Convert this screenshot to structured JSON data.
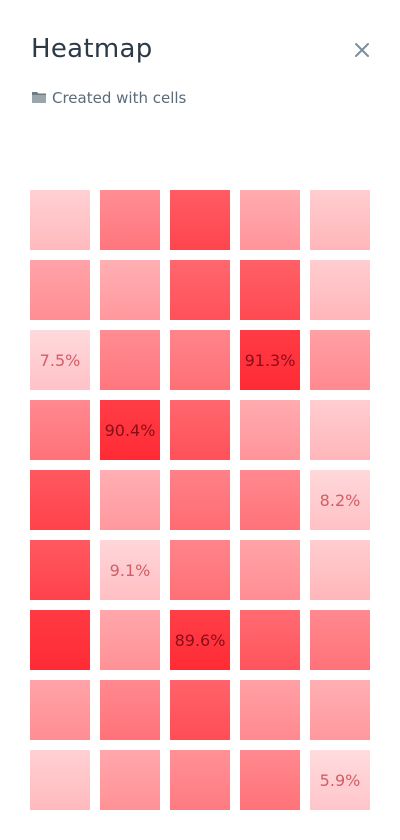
{
  "header": {
    "title": "Heatmap",
    "subtitle": "Created with cells",
    "close_icon": "close-icon",
    "folder_icon": "folder-icon"
  },
  "heatmap": {
    "type": "heatmap",
    "rows": 9,
    "cols": 5,
    "color_scale": [
      "#ffe7e9",
      "#ff2b35"
    ],
    "cells": [
      [
        {
          "v": 0.12
        },
        {
          "v": 0.48
        },
        {
          "v": 0.74
        },
        {
          "v": 0.32
        },
        {
          "v": 0.14
        }
      ],
      [
        {
          "v": 0.36
        },
        {
          "v": 0.3
        },
        {
          "v": 0.68
        },
        {
          "v": 0.72
        },
        {
          "v": 0.14
        }
      ],
      [
        {
          "v": 0.075,
          "label": "7.5%"
        },
        {
          "v": 0.48
        },
        {
          "v": 0.52
        },
        {
          "v": 0.913,
          "label": "91.3%"
        },
        {
          "v": 0.38
        }
      ],
      [
        {
          "v": 0.5
        },
        {
          "v": 0.904,
          "label": "90.4%"
        },
        {
          "v": 0.68
        },
        {
          "v": 0.32
        },
        {
          "v": 0.14
        }
      ],
      [
        {
          "v": 0.76
        },
        {
          "v": 0.3
        },
        {
          "v": 0.54
        },
        {
          "v": 0.5
        },
        {
          "v": 0.082,
          "label": "8.2%"
        }
      ],
      [
        {
          "v": 0.76
        },
        {
          "v": 0.091,
          "label": "9.1%"
        },
        {
          "v": 0.52
        },
        {
          "v": 0.36
        },
        {
          "v": 0.14
        }
      ],
      [
        {
          "v": 0.92
        },
        {
          "v": 0.34
        },
        {
          "v": 0.896,
          "label": "89.6%"
        },
        {
          "v": 0.66
        },
        {
          "v": 0.5
        }
      ],
      [
        {
          "v": 0.36
        },
        {
          "v": 0.5
        },
        {
          "v": 0.7
        },
        {
          "v": 0.38
        },
        {
          "v": 0.3
        }
      ],
      [
        {
          "v": 0.12
        },
        {
          "v": 0.34
        },
        {
          "v": 0.46
        },
        {
          "v": 0.5
        },
        {
          "v": 0.059,
          "label": "5.9%"
        }
      ]
    ]
  }
}
